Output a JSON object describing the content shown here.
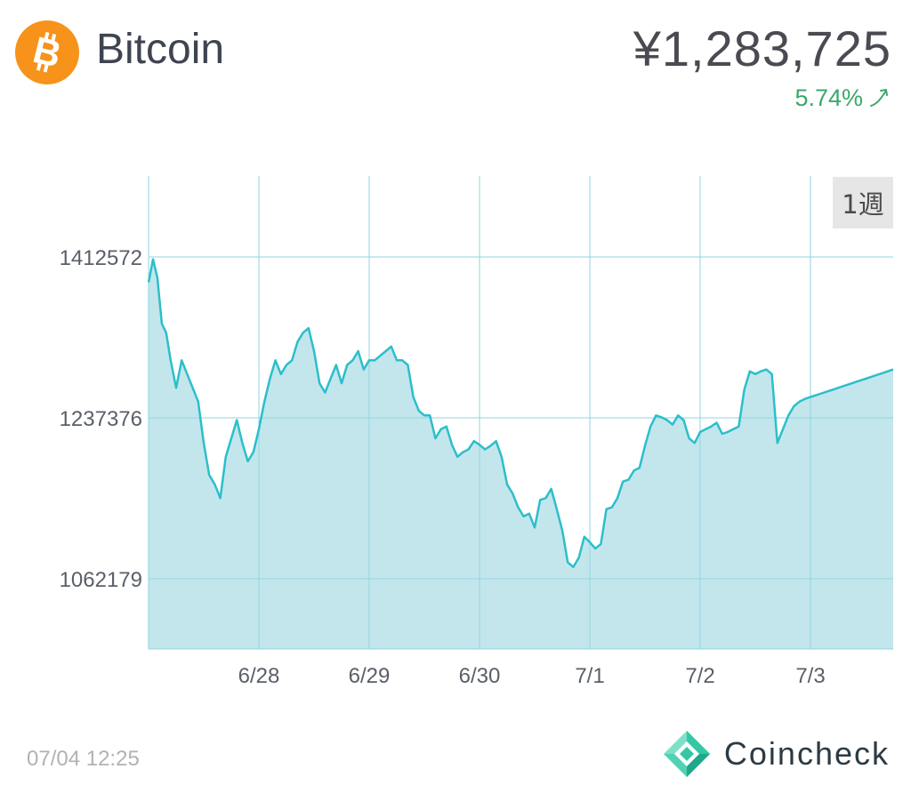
{
  "header": {
    "coin_name": "Bitcoin",
    "price": "¥1,283,725",
    "change": "5.74%",
    "change_color": "#3aa86b",
    "change_icon": "arrow-up-right-icon",
    "logo_icon": "bitcoin-logo-icon",
    "logo_color": "#f7931a"
  },
  "range_button": {
    "label": "1週"
  },
  "footer": {
    "timestamp": "07/04 12:25",
    "brand_name": "Coincheck",
    "brand_icon": "coincheck-logo-icon"
  },
  "chart_data": {
    "type": "area",
    "title": "",
    "xlabel": "",
    "ylabel": "",
    "x_tick_labels": [
      "6/28",
      "6/29",
      "6/30",
      "7/1",
      "7/2",
      "7/3"
    ],
    "y_tick_labels": [
      "1412572",
      "1237376",
      "1062179"
    ],
    "y_ticks": [
      1412572,
      1237376,
      1062179
    ],
    "ylim": [
      980000,
      1500000
    ],
    "xlim": [
      0,
      6.75
    ],
    "grid": true,
    "line_color": "#2bbfca",
    "fill_color": "#c3e6ec",
    "grid_color": "#8fd6e2",
    "series": [
      {
        "x": [
          0,
          0.04,
          0.08,
          0.12,
          0.16,
          0.2,
          0.25,
          0.3,
          0.35,
          0.4,
          0.45,
          0.5,
          0.55,
          0.6,
          0.65,
          0.7,
          0.75,
          0.8,
          0.85,
          0.9,
          0.95,
          1.0,
          1.05,
          1.1,
          1.15,
          1.2,
          1.25,
          1.3,
          1.35,
          1.4,
          1.45,
          1.5,
          1.55,
          1.6,
          1.65,
          1.7,
          1.75,
          1.8,
          1.85,
          1.9,
          1.95,
          2.0,
          2.05,
          2.1,
          2.15,
          2.2,
          2.25,
          2.3,
          2.35,
          2.4,
          2.45,
          2.5,
          2.55,
          2.6,
          2.65,
          2.7,
          2.75,
          2.8,
          2.85,
          2.9,
          2.95,
          3.0,
          3.05,
          3.1,
          3.15,
          3.2,
          3.25,
          3.3,
          3.35,
          3.4,
          3.45,
          3.5,
          3.55,
          3.6,
          3.65,
          3.7,
          3.75,
          3.8,
          3.85,
          3.9,
          3.95,
          4.0,
          4.05,
          4.1,
          4.15,
          4.2,
          4.25,
          4.3,
          4.35,
          4.4,
          4.45,
          4.5,
          4.55,
          4.6,
          4.65,
          4.7,
          4.75,
          4.8,
          4.85,
          4.9,
          4.95,
          5.0,
          5.05,
          5.1,
          5.15,
          5.2,
          5.25,
          5.3,
          5.35,
          5.4,
          5.45,
          5.5,
          5.55,
          5.6,
          5.65,
          5.7,
          5.75,
          5.8,
          5.85,
          5.9,
          5.95,
          6.0,
          6.05,
          6.1,
          6.15,
          6.2,
          6.25,
          6.3,
          6.35,
          6.4,
          6.45,
          6.5,
          6.55,
          6.6,
          6.65,
          6.7,
          6.75
        ],
        "y": [
          1385000,
          1410000,
          1390000,
          1340000,
          1330000,
          1300000,
          1270000,
          1300000,
          1285000,
          1270000,
          1255000,
          1210000,
          1175000,
          1165000,
          1150000,
          1195000,
          1215000,
          1235000,
          1210000,
          1190000,
          1200000,
          1225000,
          1255000,
          1280000,
          1300000,
          1285000,
          1295000,
          1300000,
          1320000,
          1330000,
          1335000,
          1310000,
          1275000,
          1265000,
          1280000,
          1295000,
          1275000,
          1295000,
          1300000,
          1310000,
          1290000,
          1300000,
          1300000,
          1305000,
          1310000,
          1315000,
          1300000,
          1300000,
          1295000,
          1260000,
          1245000,
          1240000,
          1240000,
          1215000,
          1225000,
          1228000,
          1208000,
          1195000,
          1200000,
          1203000,
          1212000,
          1208000,
          1203000,
          1207000,
          1212000,
          1195000,
          1165000,
          1155000,
          1140000,
          1130000,
          1133000,
          1118000,
          1148000,
          1150000,
          1160000,
          1138000,
          1115000,
          1080000,
          1075000,
          1085000,
          1108000,
          1102000,
          1095000,
          1100000,
          1138000,
          1140000,
          1150000,
          1168000,
          1170000,
          1180000,
          1183000,
          1207000,
          1228000,
          1240000,
          1238000,
          1235000,
          1230000,
          1240000,
          1235000,
          1215000,
          1210000,
          1222000,
          1225000,
          1228000,
          1232000,
          1220000,
          1222000,
          1225000,
          1228000,
          1268000,
          1288000,
          1285000,
          1288000,
          1290000,
          1285000,
          1210000,
          1225000,
          1240000,
          1250000,
          1255000,
          1258000,
          1260000,
          1262000,
          1264000,
          1266000,
          1268000,
          1270000,
          1272000,
          1274000,
          1276000,
          1278000,
          1280000,
          1282000,
          1284000,
          1286000,
          1288000,
          1290000
        ]
      }
    ]
  }
}
